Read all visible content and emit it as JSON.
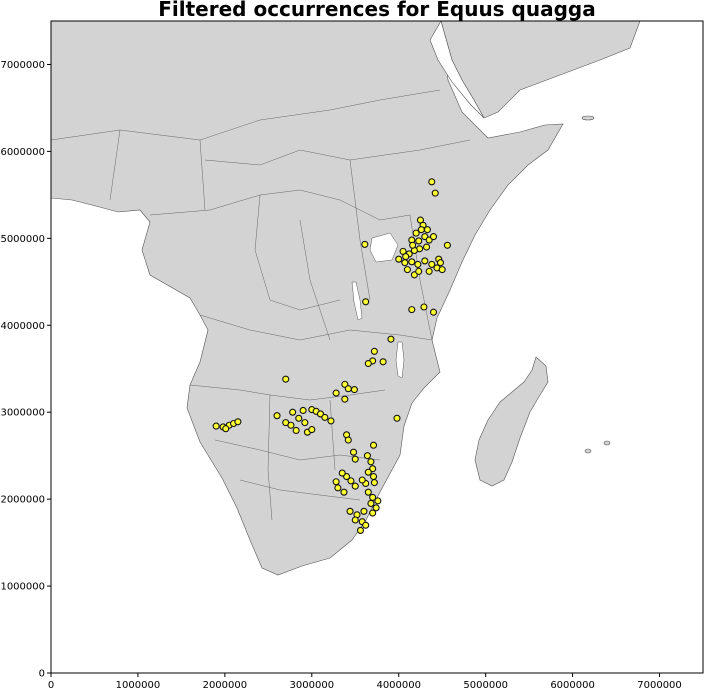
{
  "chart_data": {
    "type": "scatter",
    "title": "Filtered occurrences for Equus quagga",
    "xlabel": "",
    "ylabel": "",
    "xlim": [
      0,
      7500000
    ],
    "ylim": [
      0,
      7500000
    ],
    "xticks": [
      "0",
      "1000000",
      "2000000",
      "3000000",
      "4000000",
      "5000000",
      "6000000",
      "7000000"
    ],
    "yticks": [
      "0",
      "1000000",
      "2000000",
      "3000000",
      "4000000",
      "5000000",
      "6000000",
      "7000000"
    ],
    "grid": false,
    "basemap_color": "#d3d3d3",
    "point_fill": "#ffff33",
    "point_edge": "#111111",
    "points": [
      [
        4250000,
        5210000
      ],
      [
        4280000,
        5150000
      ],
      [
        4200000,
        5060000
      ],
      [
        4150000,
        4980000
      ],
      [
        4230000,
        4970000
      ],
      [
        4300000,
        5020000
      ],
      [
        4350000,
        4980000
      ],
      [
        4320000,
        4900000
      ],
      [
        4240000,
        4880000
      ],
      [
        4180000,
        4860000
      ],
      [
        4120000,
        4820000
      ],
      [
        4050000,
        4850000
      ],
      [
        4000000,
        4760000
      ],
      [
        4070000,
        4720000
      ],
      [
        4150000,
        4730000
      ],
      [
        4220000,
        4700000
      ],
      [
        4300000,
        4740000
      ],
      [
        4380000,
        4700000
      ],
      [
        4440000,
        4660000
      ],
      [
        4500000,
        4640000
      ],
      [
        4460000,
        4760000
      ],
      [
        4400000,
        5020000
      ],
      [
        4260000,
        5100000
      ],
      [
        4330000,
        5100000
      ],
      [
        4100000,
        4640000
      ],
      [
        4180000,
        4580000
      ],
      [
        4230000,
        4620000
      ],
      [
        4160000,
        4920000
      ],
      [
        4080000,
        4790000
      ],
      [
        4350000,
        4620000
      ],
      [
        4480000,
        4720000
      ],
      [
        4560000,
        4920000
      ],
      [
        3610000,
        4930000
      ],
      [
        4380000,
        5650000
      ],
      [
        4420000,
        5520000
      ],
      [
        4150000,
        4180000
      ],
      [
        4290000,
        4210000
      ],
      [
        4400000,
        4150000
      ],
      [
        3620000,
        4270000
      ],
      [
        3910000,
        3840000
      ],
      [
        3720000,
        3700000
      ],
      [
        3700000,
        3590000
      ],
      [
        3650000,
        3560000
      ],
      [
        3820000,
        3580000
      ],
      [
        2700000,
        3380000
      ],
      [
        3380000,
        3320000
      ],
      [
        3420000,
        3270000
      ],
      [
        3490000,
        3260000
      ],
      [
        3280000,
        3220000
      ],
      [
        3380000,
        3150000
      ],
      [
        2780000,
        3000000
      ],
      [
        2900000,
        3020000
      ],
      [
        3000000,
        3030000
      ],
      [
        3050000,
        3010000
      ],
      [
        3100000,
        2980000
      ],
      [
        3150000,
        2940000
      ],
      [
        3220000,
        2900000
      ],
      [
        2600000,
        2960000
      ],
      [
        2700000,
        2880000
      ],
      [
        2760000,
        2850000
      ],
      [
        2820000,
        2790000
      ],
      [
        2850000,
        2930000
      ],
      [
        2920000,
        2880000
      ],
      [
        2950000,
        2770000
      ],
      [
        3000000,
        2800000
      ],
      [
        1900000,
        2840000
      ],
      [
        1980000,
        2830000
      ],
      [
        2050000,
        2850000
      ],
      [
        2100000,
        2870000
      ],
      [
        2150000,
        2890000
      ],
      [
        2010000,
        2810000
      ],
      [
        3400000,
        2740000
      ],
      [
        3420000,
        2680000
      ],
      [
        3710000,
        2620000
      ],
      [
        3980000,
        2930000
      ],
      [
        3480000,
        2540000
      ],
      [
        3500000,
        2460000
      ],
      [
        3640000,
        2500000
      ],
      [
        3680000,
        2430000
      ],
      [
        3700000,
        2350000
      ],
      [
        3650000,
        2310000
      ],
      [
        3710000,
        2260000
      ],
      [
        3720000,
        2190000
      ],
      [
        3620000,
        2180000
      ],
      [
        3580000,
        2220000
      ],
      [
        3450000,
        2210000
      ],
      [
        3500000,
        2150000
      ],
      [
        3400000,
        2260000
      ],
      [
        3350000,
        2300000
      ],
      [
        3280000,
        2200000
      ],
      [
        3300000,
        2130000
      ],
      [
        3370000,
        2080000
      ],
      [
        3650000,
        2080000
      ],
      [
        3700000,
        2020000
      ],
      [
        3760000,
        1980000
      ],
      [
        3740000,
        1900000
      ],
      [
        3700000,
        1840000
      ],
      [
        3600000,
        1860000
      ],
      [
        3520000,
        1820000
      ],
      [
        3440000,
        1860000
      ],
      [
        3580000,
        1740000
      ],
      [
        3620000,
        1700000
      ],
      [
        3560000,
        1640000
      ],
      [
        3500000,
        1760000
      ],
      [
        3680000,
        1950000
      ]
    ]
  }
}
